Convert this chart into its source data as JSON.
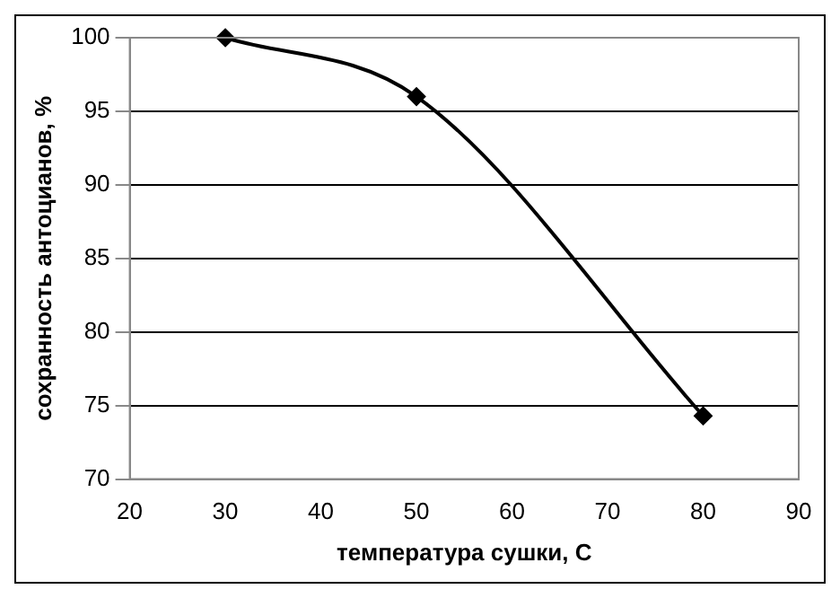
{
  "chart_data": {
    "type": "line",
    "xlabel": "температура сушки, С",
    "ylabel": "сохранность антоцианов, %",
    "x": [
      30,
      50,
      80
    ],
    "series": [
      {
        "color": "#000000",
        "values": [
          100,
          96,
          74.3
        ]
      }
    ],
    "xlim": [
      20,
      90
    ],
    "xticks": [
      20,
      30,
      40,
      50,
      60,
      70,
      80,
      90
    ],
    "ylim": [
      70,
      100
    ],
    "yticks": [
      70,
      75,
      80,
      85,
      90,
      95,
      100
    ],
    "grid": "y",
    "legend": false,
    "marker": "diamond",
    "line_style": "solid"
  }
}
